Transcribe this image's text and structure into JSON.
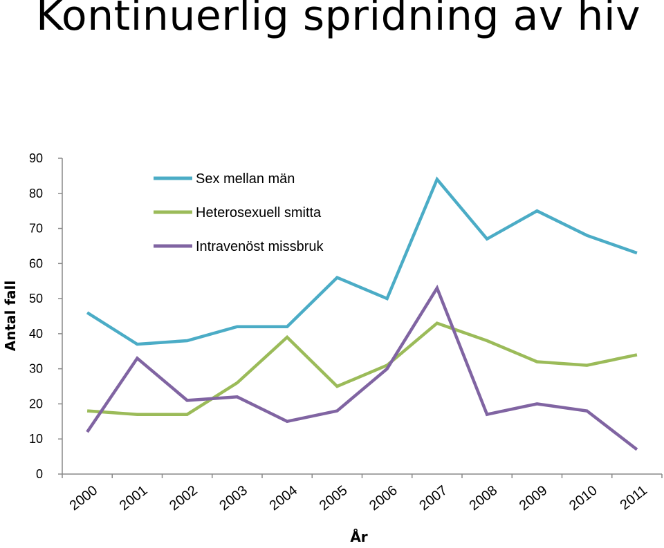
{
  "slide": {
    "title": "Kontinuerlig spridning av hiv"
  },
  "chart_data": {
    "type": "line",
    "title": "",
    "xlabel": "År",
    "ylabel": "Antal fall",
    "categories": [
      "2000",
      "2001",
      "2002",
      "2003",
      "2004",
      "2005",
      "2006",
      "2007",
      "2008",
      "2009",
      "2010",
      "2011"
    ],
    "ylim": [
      0,
      90
    ],
    "yticks": [
      0,
      10,
      20,
      30,
      40,
      50,
      60,
      70,
      80,
      90
    ],
    "grid": false,
    "legend": "top-left",
    "series": [
      {
        "name": "Sex mellan män",
        "color": "#4bacc6",
        "values": [
          46,
          37,
          38,
          42,
          42,
          56,
          50,
          84,
          67,
          75,
          68,
          63
        ]
      },
      {
        "name": "Heterosexuell smitta",
        "color": "#9bbb59",
        "values": [
          18,
          17,
          17,
          26,
          39,
          25,
          31,
          43,
          38,
          32,
          31,
          34
        ]
      },
      {
        "name": "Intravenöst missbruk",
        "color": "#8064a2",
        "values": [
          12,
          33,
          21,
          22,
          15,
          18,
          30,
          53,
          17,
          20,
          18,
          7
        ]
      }
    ]
  }
}
